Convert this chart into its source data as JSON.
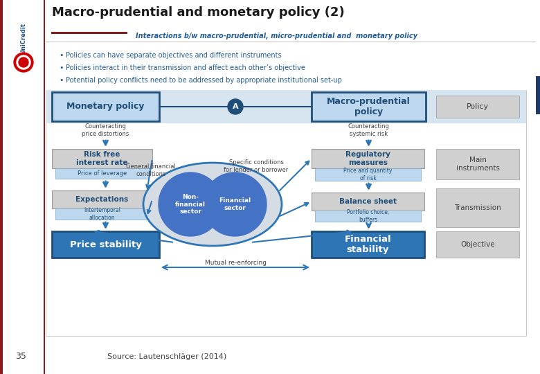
{
  "title": "Macro-prudential and monetary policy (2)",
  "subtitle": "Interactions b/w macro-prudential, micro-prudential and  monetary policy",
  "bullet1": "Policies can have separate objectives and different instruments",
  "bullet2": "Policies interact in their transmission and affect each other’s objective",
  "bullet3": "Potential policy conflicts need to be addressed by appropriate institutional set-up",
  "source": "Source: Lautenschläger (2014)",
  "page_num": "35",
  "bg_color": "#FFFFFF",
  "title_color": "#1A1A1A",
  "subtitle_color": "#1F5C99",
  "bullet_color": "#1F5C99",
  "dark_blue": "#1F4E79",
  "mid_blue": "#4472C4",
  "light_blue_box": "#BDD7EE",
  "gray_box": "#D0D0D0",
  "dark_blue_box": "#2E75B6",
  "oval_outer_fill": "#D9E2F0",
  "oval_inner": "#4472C4",
  "left_bar_color": "#8B1A1A",
  "right_bar_color": "#1F3864"
}
